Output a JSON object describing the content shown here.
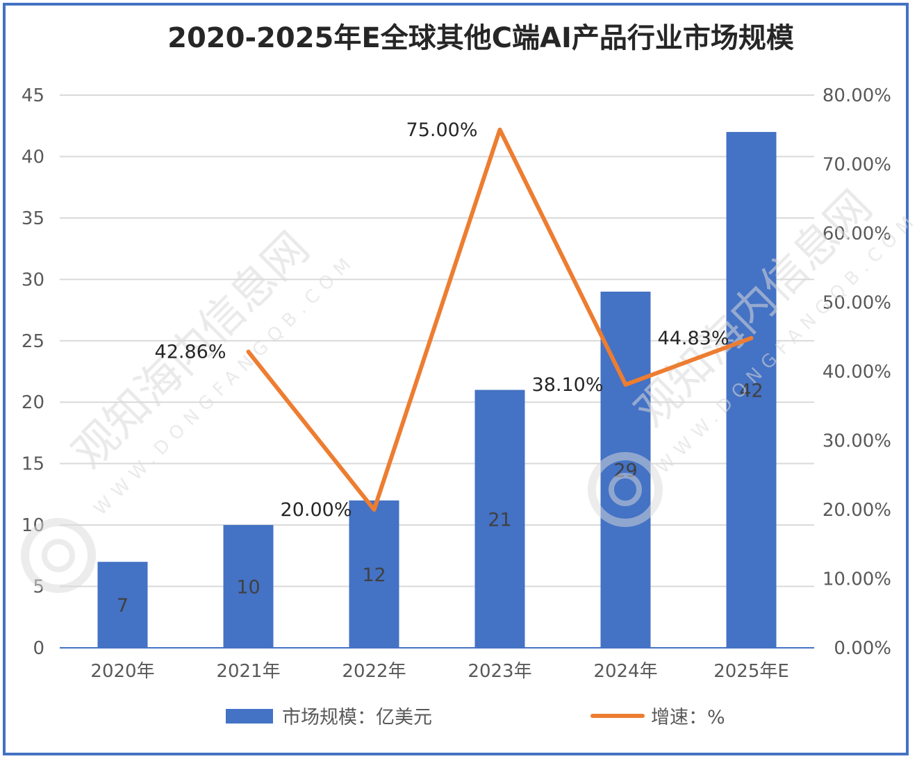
{
  "chart_data": {
    "type": "bar",
    "title": "2020-2025年E全球其他C端AI产品行业市场规模",
    "categories": [
      "2020年",
      "2021年",
      "2022年",
      "2023年",
      "2024年",
      "2025年E"
    ],
    "series": [
      {
        "name": "市场规模：亿美元",
        "type": "bar",
        "axis": "left",
        "values": [
          7,
          10,
          12,
          21,
          29,
          42
        ],
        "labels": [
          "7",
          "10",
          "12",
          "21",
          "29",
          "42"
        ]
      },
      {
        "name": "增速：%",
        "type": "line",
        "axis": "right",
        "values": [
          null,
          42.86,
          20.0,
          75.0,
          38.1,
          44.83
        ],
        "labels": [
          "",
          "42.86%",
          "20.00%",
          "75.00%",
          "38.10%",
          "44.83%"
        ]
      }
    ],
    "ylim": [
      0,
      45
    ],
    "y_ticks": [
      "0",
      "5",
      "10",
      "15",
      "20",
      "25",
      "30",
      "35",
      "40",
      "45"
    ],
    "y2lim": [
      0,
      80
    ],
    "y2_ticks": [
      "0.00%",
      "10.00%",
      "20.00%",
      "30.00%",
      "40.00%",
      "50.00%",
      "60.00%",
      "70.00%",
      "80.00%"
    ],
    "grid": true,
    "legend_position": "bottom",
    "colors": {
      "bar": "#4472c4",
      "line": "#ed7d31",
      "grid": "#d9d9d9",
      "frame": "#4472c4"
    }
  },
  "watermark": {
    "text": "观知海内信息网",
    "sub": "WWW.DONGFANGQB.COM"
  }
}
